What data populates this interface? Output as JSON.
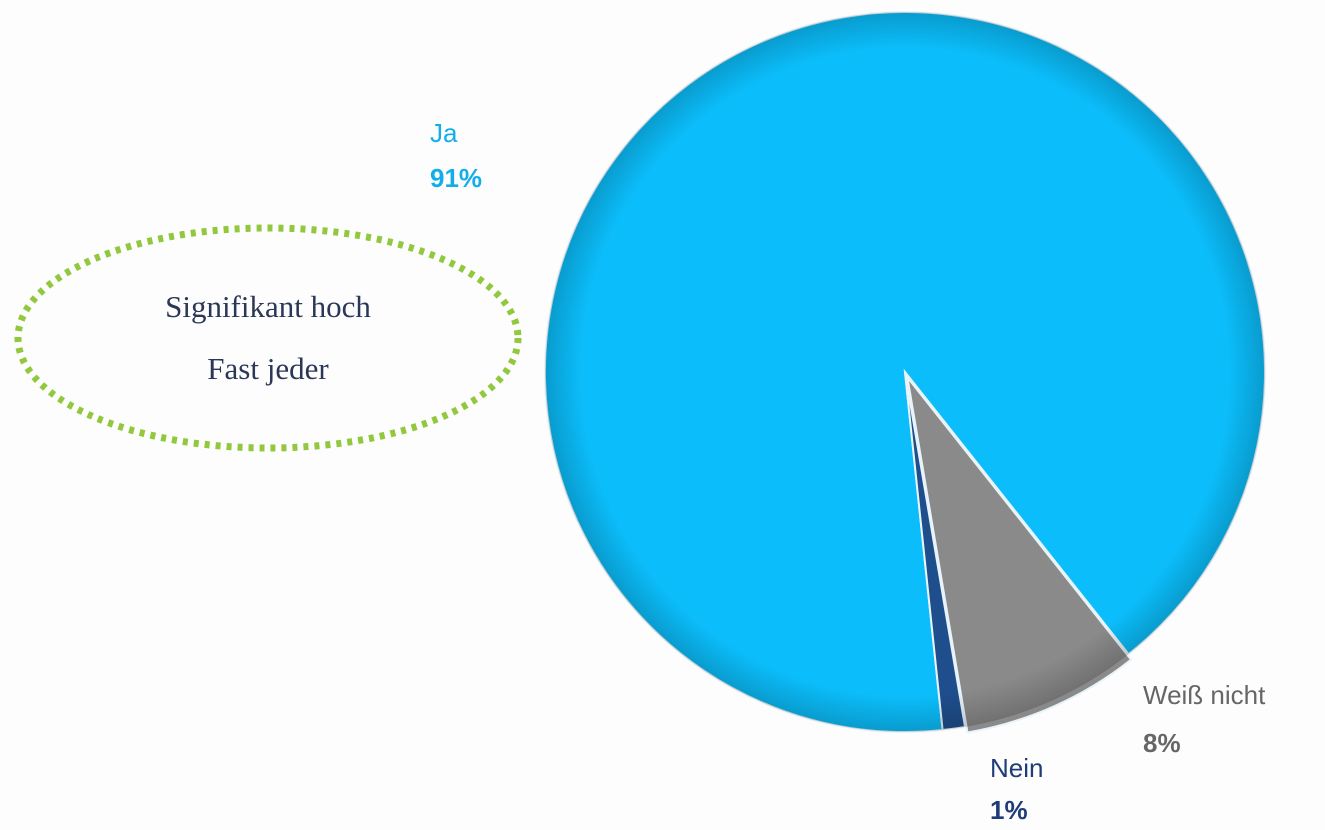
{
  "chart_data": {
    "type": "pie",
    "categories": [
      "Ja",
      "Weiß nicht",
      "Nein"
    ],
    "values": [
      91,
      8,
      1
    ],
    "value_labels": [
      "91%",
      "8%",
      "1%"
    ],
    "colors": [
      "#0bbdfa",
      "#8a8a8a",
      "#1f4e8c"
    ],
    "label_colors": [
      "#12aee8",
      "#666666",
      "#1f3c7a"
    ],
    "annotations": [
      "Signifikant hoch",
      "Fast jeder"
    ]
  }
}
